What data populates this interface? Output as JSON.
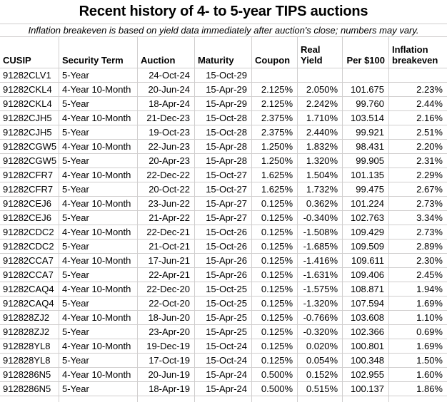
{
  "colors": {
    "background": "#ffffff",
    "text": "#000000",
    "gridline": "#d0cece"
  },
  "chart_data": {
    "type": "table",
    "title": "Recent history of 4- to 5-year TIPS auctions",
    "subtitle": "Inflation breakeven is based on yield data immediately after auction's close; numbers may vary.",
    "columns": [
      {
        "label": "CUSIP",
        "header_align": "left",
        "data_align": "left"
      },
      {
        "label": "Security Term",
        "header_align": "left",
        "data_align": "left"
      },
      {
        "label": "Auction",
        "header_align": "left",
        "data_align": "right"
      },
      {
        "label": "Maturity",
        "header_align": "left",
        "data_align": "right"
      },
      {
        "label": "Coupon",
        "header_align": "left",
        "data_align": "right"
      },
      {
        "label": "Real Yield",
        "header_align": "left",
        "data_align": "right"
      },
      {
        "label": "Per $100",
        "header_align": "right",
        "data_align": "right"
      },
      {
        "label": "Inflation breakeven",
        "header_align": "left",
        "data_align": "right"
      }
    ],
    "rows": [
      [
        "91282CLV1",
        "5-Year",
        "24-Oct-24",
        "15-Oct-29",
        "",
        "",
        "",
        ""
      ],
      [
        "91282CKL4",
        "4-Year 10-Month",
        "20-Jun-24",
        "15-Apr-29",
        "2.125%",
        "2.050%",
        "101.675",
        "2.23%"
      ],
      [
        "91282CKL4",
        "5-Year",
        "18-Apr-24",
        "15-Apr-29",
        "2.125%",
        "2.242%",
        "99.760",
        "2.44%"
      ],
      [
        "91282CJH5",
        "4-Year 10-Month",
        "21-Dec-23",
        "15-Oct-28",
        "2.375%",
        "1.710%",
        "103.514",
        "2.16%"
      ],
      [
        "91282CJH5",
        "5-Year",
        "19-Oct-23",
        "15-Oct-28",
        "2.375%",
        "2.440%",
        "99.921",
        "2.51%"
      ],
      [
        "91282CGW5",
        "4-Year 10-Month",
        "22-Jun-23",
        "15-Apr-28",
        "1.250%",
        "1.832%",
        "98.431",
        "2.20%"
      ],
      [
        "91282CGW5",
        "5-Year",
        "20-Apr-23",
        "15-Apr-28",
        "1.250%",
        "1.320%",
        "99.905",
        "2.31%"
      ],
      [
        "91282CFR7",
        "4-Year 10-Month",
        "22-Dec-22",
        "15-Oct-27",
        "1.625%",
        "1.504%",
        "101.135",
        "2.29%"
      ],
      [
        "91282CFR7",
        "5-Year",
        "20-Oct-22",
        "15-Oct-27",
        "1.625%",
        "1.732%",
        "99.475",
        "2.67%"
      ],
      [
        "91282CEJ6",
        "4-Year 10-Month",
        "23-Jun-22",
        "15-Apr-27",
        "0.125%",
        "0.362%",
        "101.224",
        "2.73%"
      ],
      [
        "91282CEJ6",
        "5-Year",
        "21-Apr-22",
        "15-Apr-27",
        "0.125%",
        "-0.340%",
        "102.763",
        "3.34%"
      ],
      [
        "91282CDC2",
        "4-Year 10-Month",
        "22-Dec-21",
        "15-Oct-26",
        "0.125%",
        "-1.508%",
        "109.429",
        "2.73%"
      ],
      [
        "91282CDC2",
        "5-Year",
        "21-Oct-21",
        "15-Oct-26",
        "0.125%",
        "-1.685%",
        "109.509",
        "2.89%"
      ],
      [
        "91282CCA7",
        "4-Year 10-Month",
        "17-Jun-21",
        "15-Apr-26",
        "0.125%",
        "-1.416%",
        "109.611",
        "2.30%"
      ],
      [
        "91282CCA7",
        "5-Year",
        "22-Apr-21",
        "15-Apr-26",
        "0.125%",
        "-1.631%",
        "109.406",
        "2.45%"
      ],
      [
        "91282CAQ4",
        "4-Year 10-Month",
        "22-Dec-20",
        "15-Oct-25",
        "0.125%",
        "-1.575%",
        "108.871",
        "1.94%"
      ],
      [
        "91282CAQ4",
        "5-Year",
        "22-Oct-20",
        "15-Oct-25",
        "0.125%",
        "-1.320%",
        "107.594",
        "1.69%"
      ],
      [
        "912828ZJ2",
        "4-Year 10-Month",
        "18-Jun-20",
        "15-Apr-25",
        "0.125%",
        "-0.766%",
        "103.608",
        "1.10%"
      ],
      [
        "912828ZJ2",
        "5-Year",
        "23-Apr-20",
        "15-Apr-25",
        "0.125%",
        "-0.320%",
        "102.366",
        "0.69%"
      ],
      [
        "912828YL8",
        "4-Year 10-Month",
        "19-Dec-19",
        "15-Oct-24",
        "0.125%",
        "0.020%",
        "100.801",
        "1.69%"
      ],
      [
        "912828YL8",
        "5-Year",
        "17-Oct-19",
        "15-Oct-24",
        "0.125%",
        "0.054%",
        "100.348",
        "1.50%"
      ],
      [
        "9128286N5",
        "4-Year 10-Month",
        "20-Jun-19",
        "15-Apr-24",
        "0.500%",
        "0.152%",
        "102.955",
        "1.60%"
      ],
      [
        "9128286N5",
        "5-Year",
        "18-Apr-19",
        "15-Apr-24",
        "0.500%",
        "0.515%",
        "100.137",
        "1.86%"
      ]
    ]
  }
}
